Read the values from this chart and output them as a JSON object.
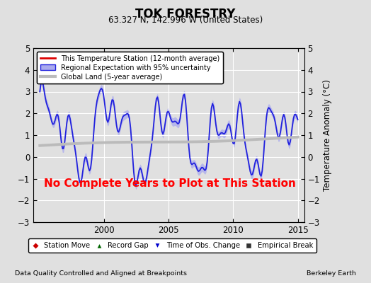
{
  "title": "TOK FORESTRY",
  "subtitle": "63.327 N, 142.996 W (United States)",
  "xlabel_left": "Data Quality Controlled and Aligned at Breakpoints",
  "xlabel_right": "Berkeley Earth",
  "ylabel": "Temperature Anomaly (°C)",
  "ylim": [
    -3,
    5
  ],
  "xlim": [
    1994.5,
    2015.5
  ],
  "xticks": [
    2000,
    2005,
    2010,
    2015
  ],
  "yticks": [
    -3,
    -2,
    -1,
    0,
    1,
    2,
    3,
    4,
    5
  ],
  "annotation": "No Complete Years to Plot at This Station",
  "annotation_color": "#ff0000",
  "bg_color": "#e0e0e0",
  "plot_bg_color": "#e0e0e0",
  "grid_color": "#ffffff",
  "regional_color": "#2222dd",
  "regional_fill": "#aaaaee",
  "global_color": "#bbbbbb",
  "red_line_color": "#dd0000"
}
